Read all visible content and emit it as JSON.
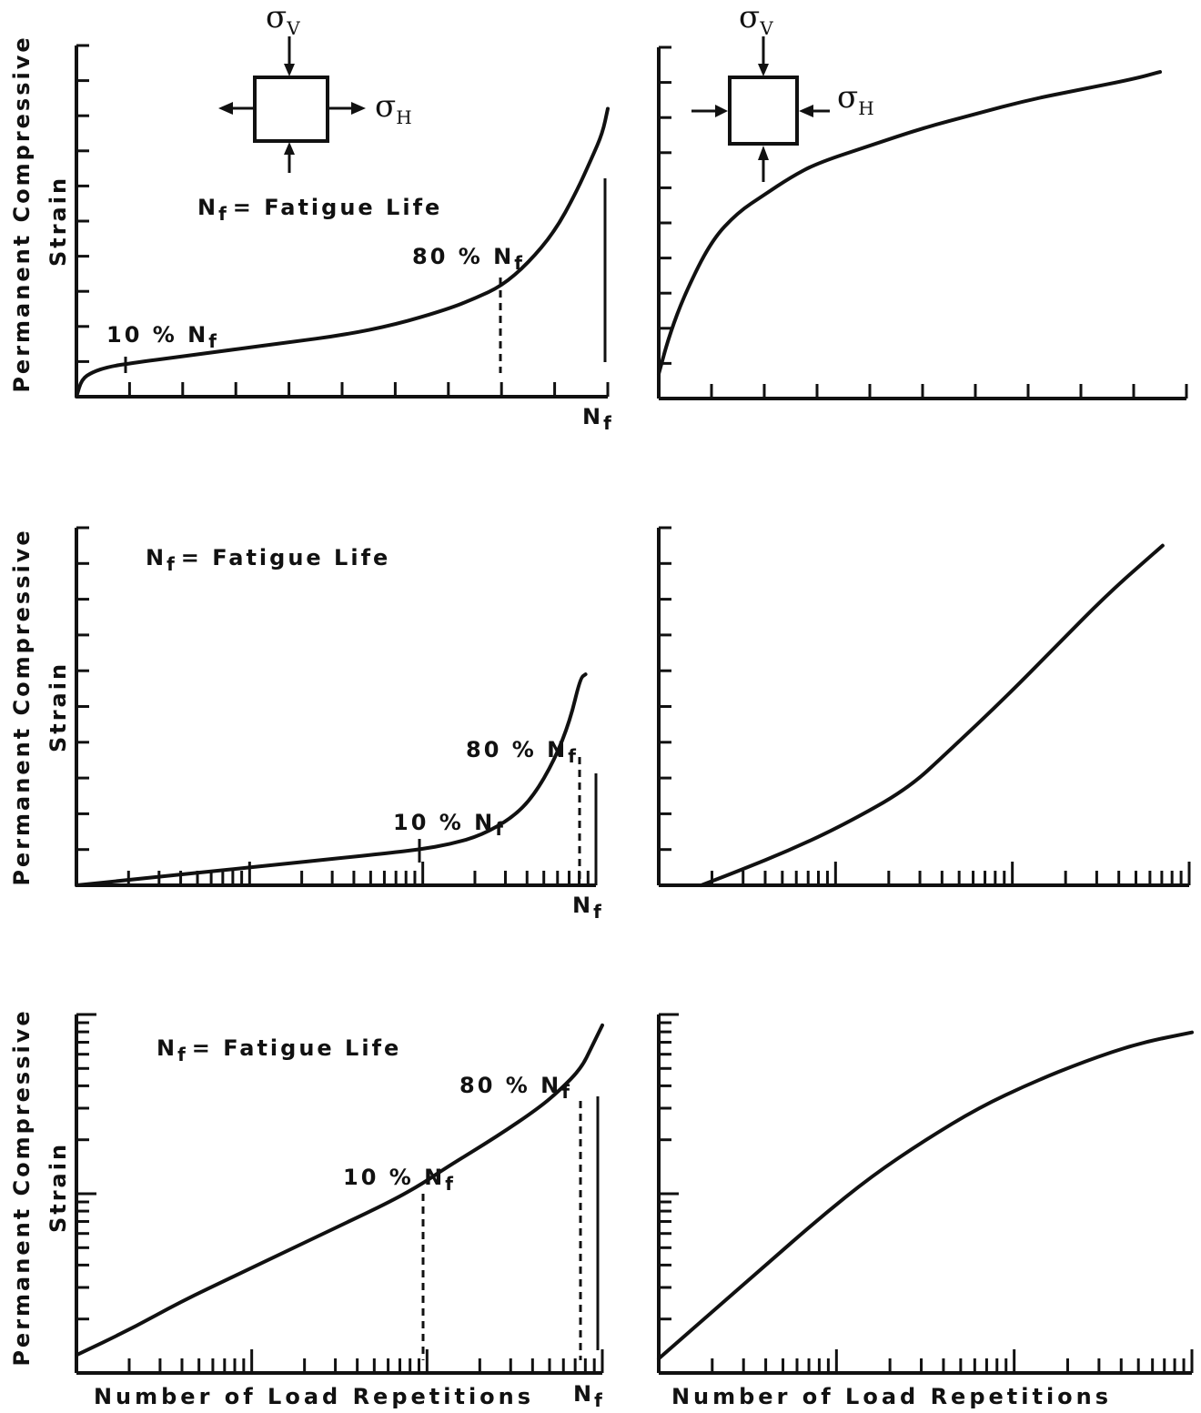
{
  "figure": {
    "y_axis_label_line1": "Permanent Compressive",
    "y_axis_label_line2": "Strain",
    "x_axis_label": "Number of Load Repetitions",
    "annotation_fatigue": "N",
    "annotation_fatigue_sub": "f",
    "annotation_fatigue_rest": "= Fatigue Life",
    "marker_80": "80 % N",
    "marker_10": "10 % N",
    "marker_sub": "f",
    "nf_tick": "N",
    "sigma": "σ",
    "sigma_v_sub": "V",
    "sigma_h_sub": "H",
    "stress_state_left": "tension-compression",
    "stress_state_right": "compression-compression",
    "line_color": "#111111"
  },
  "chart_data": [
    {
      "type": "line",
      "panel": "top-left",
      "x_scale": "linear",
      "y_scale": "linear",
      "x_relative": [
        0,
        0.01,
        0.03,
        0.06,
        0.1,
        0.2,
        0.3,
        0.4,
        0.5,
        0.6,
        0.7,
        0.75,
        0.8,
        0.85,
        0.9,
        0.94,
        0.97,
        0.99,
        1.0
      ],
      "y_relative": [
        0,
        0.05,
        0.07,
        0.085,
        0.095,
        0.115,
        0.135,
        0.155,
        0.175,
        0.205,
        0.25,
        0.28,
        0.315,
        0.38,
        0.47,
        0.58,
        0.68,
        0.75,
        0.82
      ],
      "markers": [
        {
          "label": "10% Nf",
          "x_relative": 0.1
        },
        {
          "label": "80% Nf",
          "x_relative": 0.8
        },
        {
          "label": "Nf",
          "x_relative": 1.0
        }
      ]
    },
    {
      "type": "line",
      "panel": "top-right",
      "x_scale": "linear",
      "y_scale": "linear",
      "x_relative": [
        0,
        0.02,
        0.05,
        0.1,
        0.15,
        0.2,
        0.25,
        0.3,
        0.4,
        0.5,
        0.6,
        0.7,
        0.8,
        0.9,
        0.95
      ],
      "y_relative": [
        0.07,
        0.18,
        0.3,
        0.45,
        0.53,
        0.58,
        0.63,
        0.67,
        0.72,
        0.77,
        0.81,
        0.85,
        0.88,
        0.91,
        0.93
      ]
    },
    {
      "type": "line",
      "panel": "middle-left",
      "x_scale": "log",
      "y_scale": "linear",
      "x_relative": [
        0,
        0.1,
        0.2,
        0.3,
        0.4,
        0.5,
        0.6,
        0.66,
        0.72,
        0.78,
        0.84,
        0.88,
        0.92,
        0.95,
        0.97,
        0.98
      ],
      "y_relative": [
        0,
        0.015,
        0.03,
        0.045,
        0.06,
        0.075,
        0.09,
        0.1,
        0.115,
        0.14,
        0.19,
        0.25,
        0.35,
        0.46,
        0.58,
        0.59
      ]
    },
    {
      "type": "line",
      "panel": "middle-right",
      "x_scale": "log",
      "y_scale": "linear",
      "x_relative": [
        0.08,
        0.15,
        0.25,
        0.35,
        0.47,
        0.55,
        0.65,
        0.75,
        0.85,
        0.95
      ],
      "y_relative": [
        0.0,
        0.04,
        0.1,
        0.17,
        0.27,
        0.38,
        0.52,
        0.67,
        0.82,
        0.95
      ]
    },
    {
      "type": "line",
      "panel": "bottom-left",
      "x_scale": "log",
      "y_scale": "log",
      "x_relative": [
        0,
        0.1,
        0.2,
        0.3,
        0.4,
        0.5,
        0.6,
        0.66,
        0.7,
        0.8,
        0.88,
        0.92,
        0.96,
        0.98,
        1.0
      ],
      "y_relative": [
        0.05,
        0.12,
        0.2,
        0.27,
        0.34,
        0.41,
        0.48,
        0.53,
        0.57,
        0.66,
        0.74,
        0.79,
        0.85,
        0.91,
        0.97
      ]
    },
    {
      "type": "line",
      "panel": "bottom-right",
      "x_scale": "log",
      "y_scale": "log",
      "x_relative": [
        0,
        0.1,
        0.2,
        0.3,
        0.4,
        0.5,
        0.6,
        0.7,
        0.8,
        0.9,
        1.0
      ],
      "y_relative": [
        0.04,
        0.17,
        0.3,
        0.43,
        0.55,
        0.65,
        0.74,
        0.81,
        0.87,
        0.92,
        0.95
      ]
    }
  ]
}
